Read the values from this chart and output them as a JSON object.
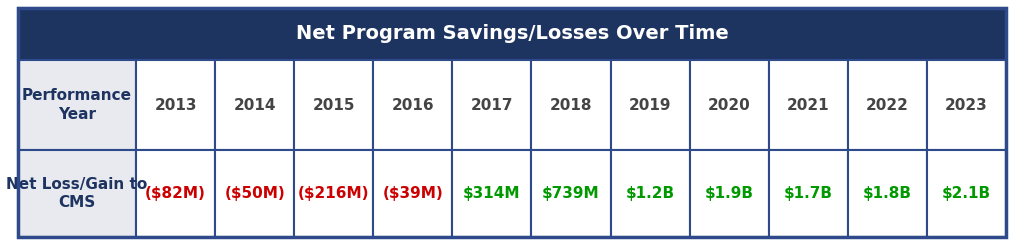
{
  "title": "Net Program Savings/Losses Over Time",
  "title_bg_color": "#1e3460",
  "title_text_color": "#ffffff",
  "header_row_label": "Performance\nYear",
  "data_row_label": "Net Loss/Gain to\nCMS",
  "years": [
    "2013",
    "2014",
    "2015",
    "2016",
    "2017",
    "2018",
    "2019",
    "2020",
    "2021",
    "2022",
    "2023"
  ],
  "values": [
    "($82M)",
    "($50M)",
    "($216M)",
    "($39M)",
    "$314M",
    "$739M",
    "$1.2B",
    "$1.9B",
    "$1.7B",
    "$1.8B",
    "$2.1B"
  ],
  "value_colors": [
    "#cc0000",
    "#cc0000",
    "#cc0000",
    "#cc0000",
    "#009900",
    "#009900",
    "#009900",
    "#009900",
    "#009900",
    "#009900",
    "#009900"
  ],
  "label_bg_color": "#e8eaf0",
  "cell_bg_color": "#ffffff",
  "grid_color": "#2e4a8a",
  "label_text_color": "#1e3460",
  "year_text_color": "#444444",
  "outer_bg_color": "#ffffff",
  "figsize": [
    10.24,
    2.45
  ],
  "dpi": 100
}
